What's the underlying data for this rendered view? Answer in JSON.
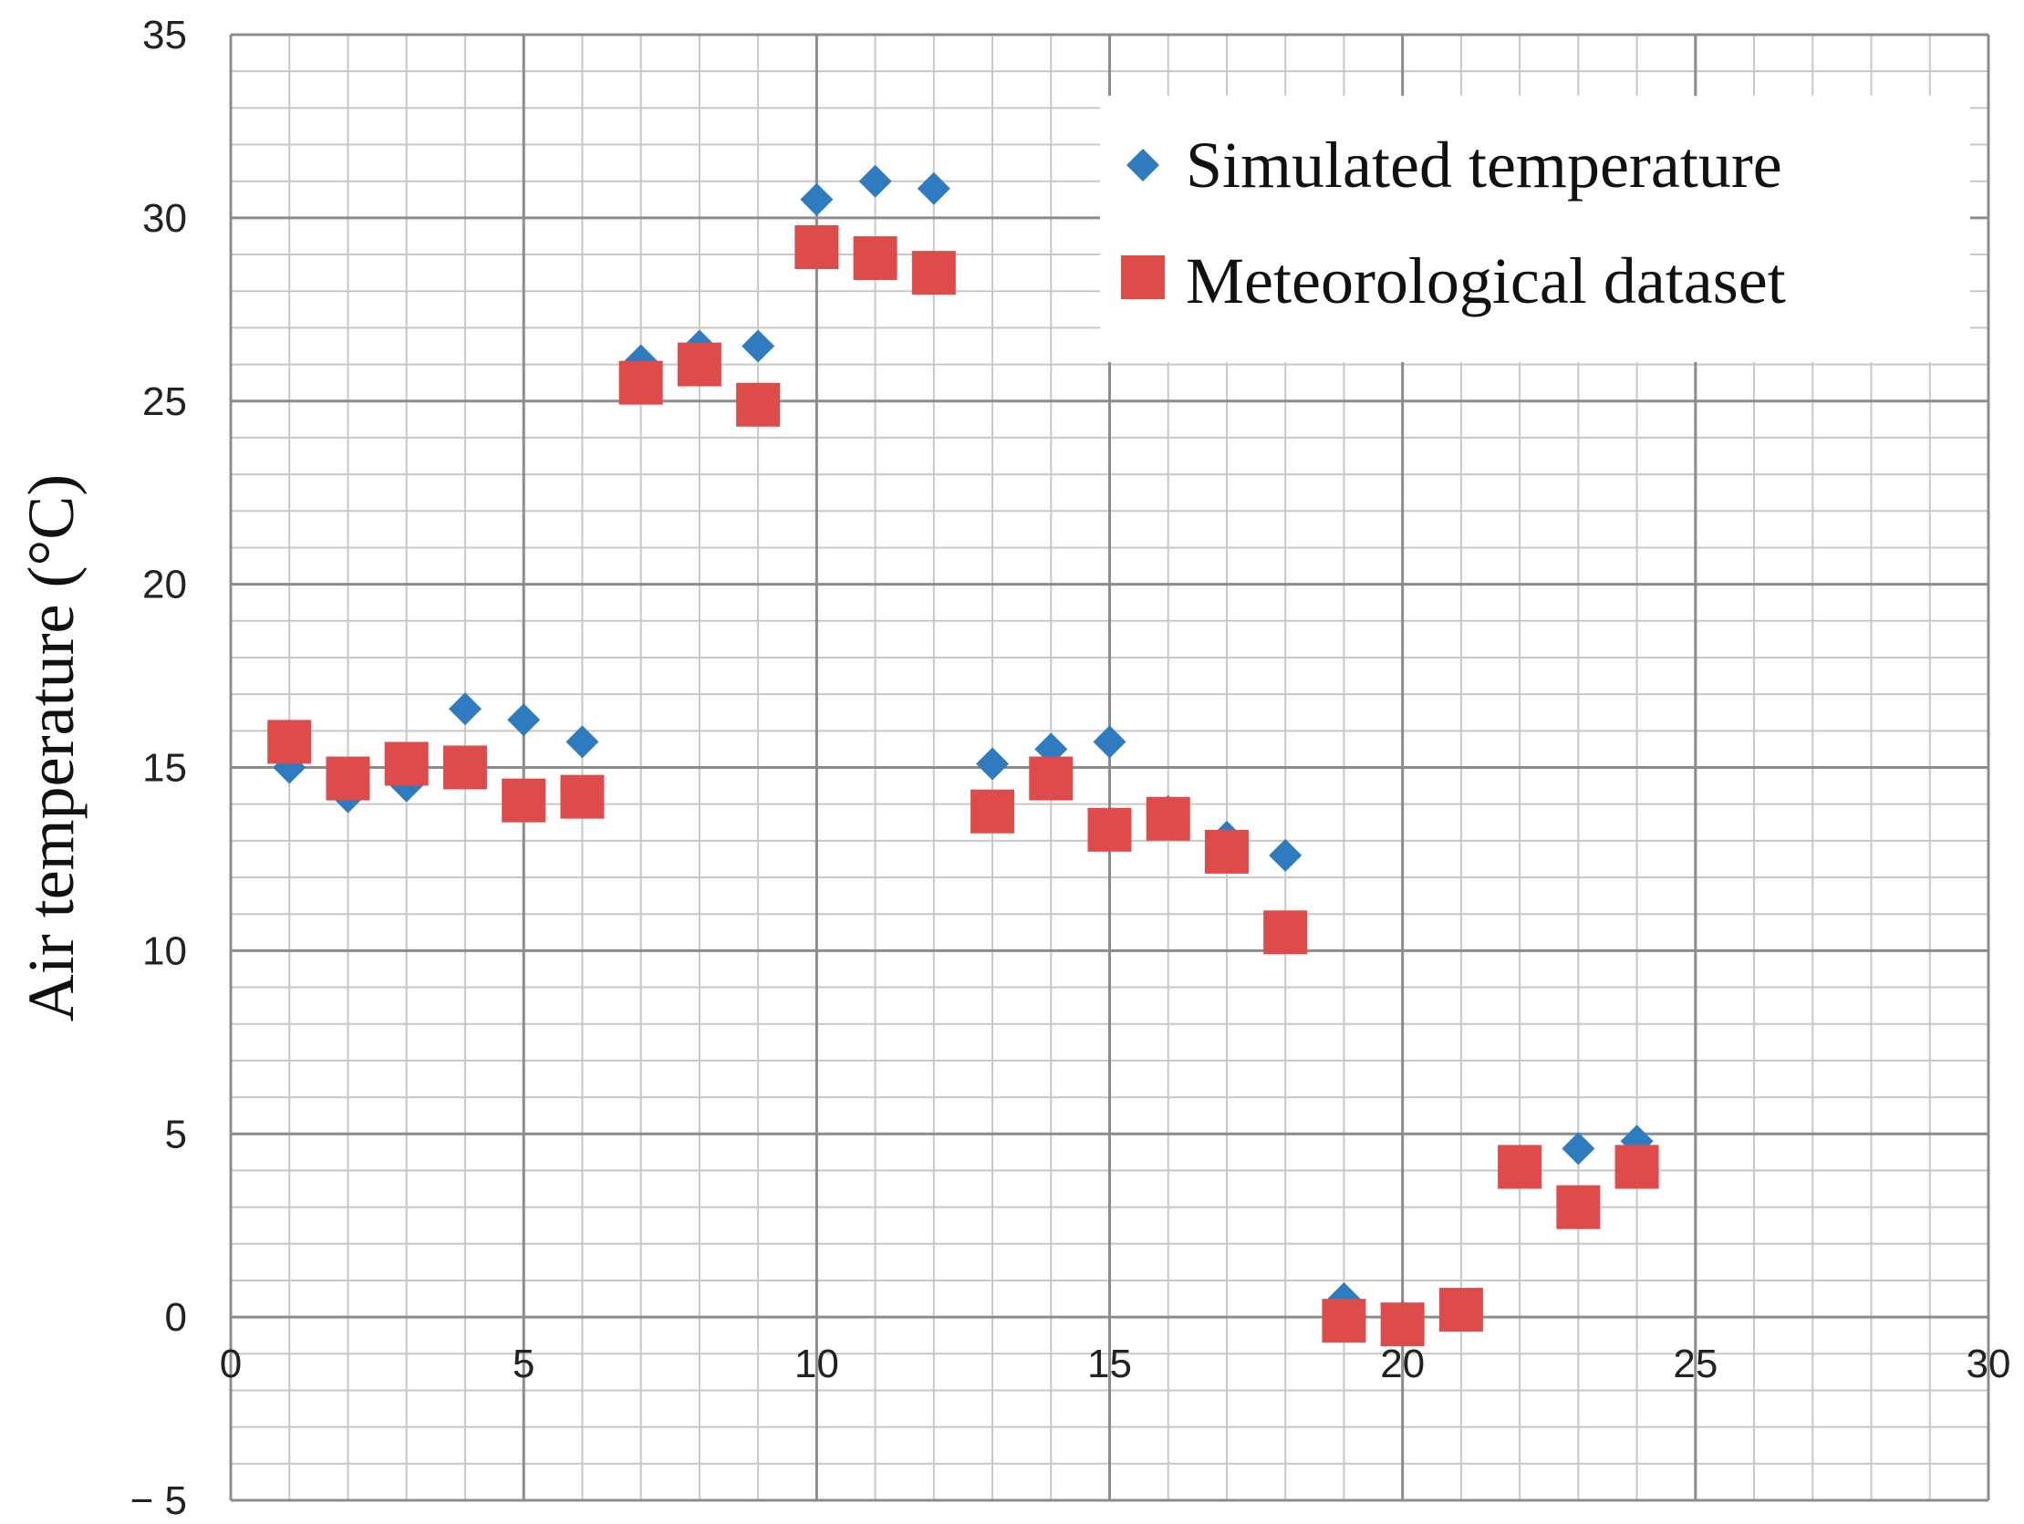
{
  "chart_data": {
    "type": "scatter",
    "title": "",
    "xlabel": "",
    "ylabel": "Air temperature (°C)",
    "xlim": [
      0,
      30
    ],
    "ylim": [
      -5,
      35
    ],
    "x_ticks": [
      0,
      5,
      10,
      15,
      20,
      25,
      30
    ],
    "y_ticks": [
      -5,
      0,
      5,
      10,
      15,
      20,
      25,
      30,
      35
    ],
    "x_tick_labels": [
      "0",
      "5",
      "10",
      "15",
      "20",
      "25",
      "30"
    ],
    "y_tick_labels": [
      "− 5",
      "0",
      "5",
      "10",
      "15",
      "20",
      "25",
      "30",
      "35"
    ],
    "grid": true,
    "minor_grid_step_x": 1,
    "minor_grid_step_y": 1,
    "legend_position": "top-right",
    "series": [
      {
        "name": "Simulated temperature",
        "marker": "diamond",
        "color": "#2e7bbf",
        "x": [
          1,
          2,
          3,
          4,
          5,
          6,
          7,
          8,
          9,
          10,
          11,
          12,
          13,
          14,
          15,
          16,
          17,
          18,
          19,
          20,
          21,
          22,
          23,
          24
        ],
        "values": [
          15.0,
          14.2,
          14.5,
          16.6,
          16.3,
          15.7,
          26.1,
          26.5,
          26.5,
          30.5,
          31.0,
          30.8,
          15.1,
          15.5,
          15.7,
          13.8,
          13.1,
          12.6,
          0.5,
          0.0,
          0.3,
          4.2,
          4.6,
          4.8
        ]
      },
      {
        "name": "Meteorological dataset",
        "marker": "square",
        "color": "#dd4c4a",
        "x": [
          1,
          2,
          3,
          4,
          5,
          6,
          7,
          8,
          9,
          10,
          11,
          12,
          13,
          14,
          15,
          16,
          17,
          18,
          19,
          20,
          21,
          22,
          23,
          24
        ],
        "values": [
          15.7,
          14.7,
          15.1,
          15.0,
          14.1,
          14.2,
          25.5,
          26.0,
          24.9,
          29.2,
          28.9,
          28.5,
          13.8,
          14.7,
          13.3,
          13.6,
          12.7,
          10.5,
          -0.1,
          -0.2,
          0.2,
          4.1,
          3.0,
          4.1
        ]
      }
    ]
  }
}
